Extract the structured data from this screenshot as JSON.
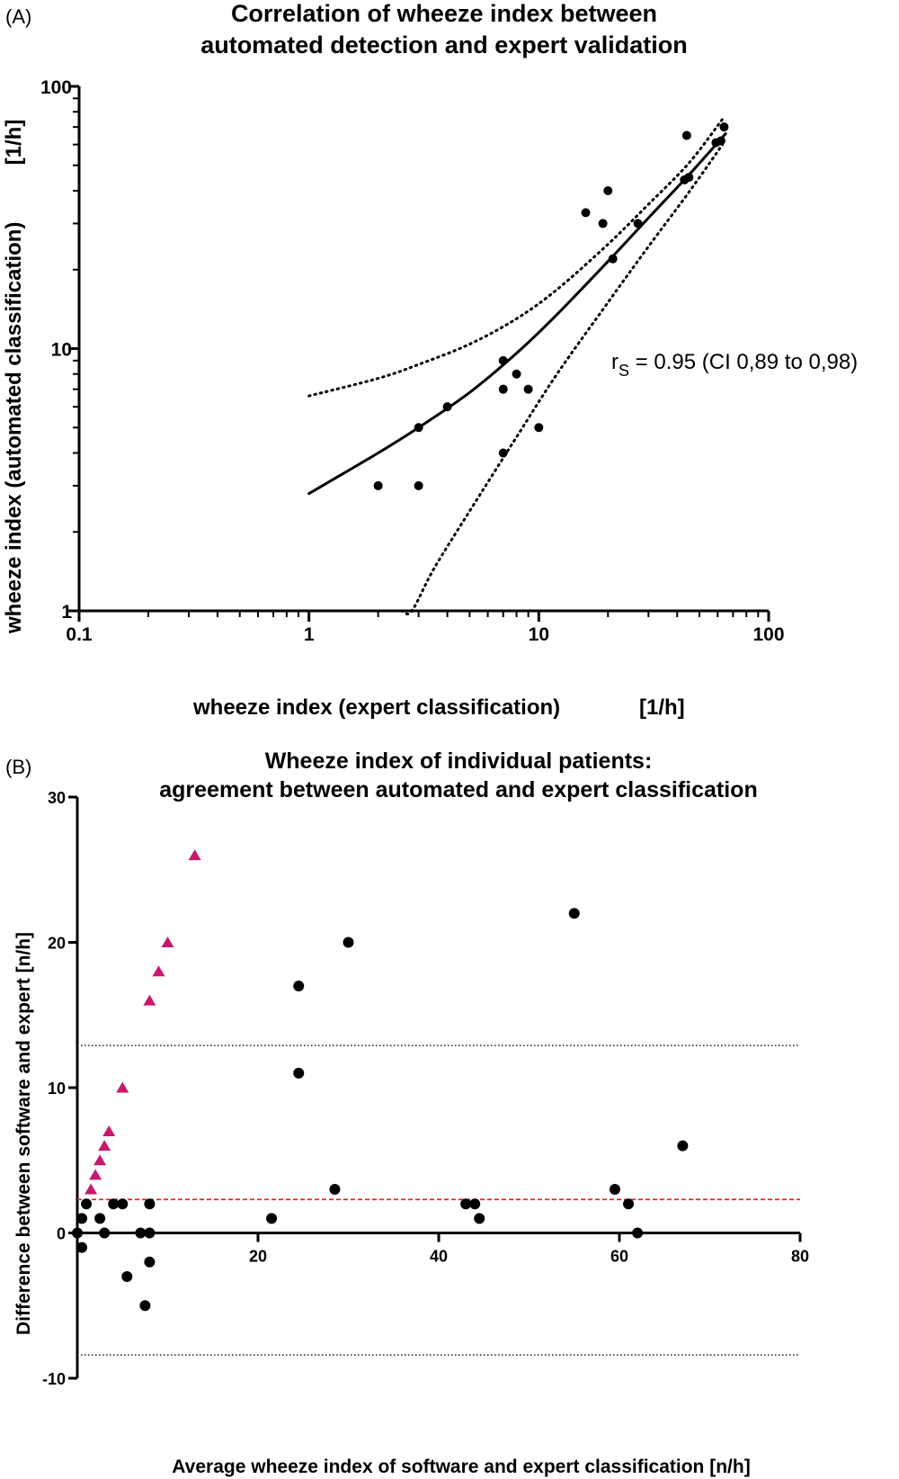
{
  "chart_data": [
    {
      "panel": "(A)",
      "type": "scatter",
      "title": "Correlation of wheeze index between automated detection and expert validation",
      "title_lines": [
        "Correlation of wheeze index between",
        "automated detection and expert validation"
      ],
      "xlabel": "wheeze index (expert classification)",
      "xunit": "[1/h]",
      "ylabel": "wheeze index (automated classification)",
      "yunit": "[1/h]",
      "xscale": "log",
      "yscale": "log",
      "xlim": [
        0.1,
        100
      ],
      "ylim": [
        1,
        100
      ],
      "x_ticks": [
        "0.1",
        "1",
        "10",
        "100"
      ],
      "y_ticks": [
        "1",
        "10",
        "100"
      ],
      "annotation": {
        "symbol": "r",
        "subscript": "S",
        "text": " = 0.95 (CI 0,89 to 0,98)"
      },
      "points": [
        {
          "x": 2,
          "y": 3
        },
        {
          "x": 3,
          "y": 3
        },
        {
          "x": 3,
          "y": 5
        },
        {
          "x": 4,
          "y": 6
        },
        {
          "x": 7,
          "y": 4
        },
        {
          "x": 7,
          "y": 7
        },
        {
          "x": 7,
          "y": 9
        },
        {
          "x": 8,
          "y": 8
        },
        {
          "x": 9,
          "y": 7
        },
        {
          "x": 10,
          "y": 5
        },
        {
          "x": 16,
          "y": 33
        },
        {
          "x": 19,
          "y": 30
        },
        {
          "x": 20,
          "y": 40
        },
        {
          "x": 21,
          "y": 22
        },
        {
          "x": 27,
          "y": 30
        },
        {
          "x": 43,
          "y": 44
        },
        {
          "x": 44,
          "y": 65
        },
        {
          "x": 45,
          "y": 45
        },
        {
          "x": 59,
          "y": 61
        },
        {
          "x": 62,
          "y": 62
        },
        {
          "x": 64,
          "y": 70
        }
      ],
      "fit_line": {
        "style": "solid",
        "x": [
          1,
          2,
          3,
          5,
          8,
          12,
          20,
          30,
          45,
          65
        ],
        "y": [
          2.8,
          4.0,
          5.0,
          6.8,
          9.6,
          13.5,
          21.5,
          31.5,
          46.0,
          66.0
        ]
      },
      "ci_upper": {
        "style": "dotted",
        "x": [
          1,
          2,
          3,
          5,
          8,
          12,
          20,
          30,
          45,
          63
        ],
        "y": [
          6.6,
          7.7,
          8.7,
          10.4,
          13.0,
          16.8,
          25.0,
          35.5,
          51.0,
          75.0
        ]
      },
      "ci_lower": {
        "style": "dotted",
        "x": [
          0.99,
          1.5,
          2.0,
          2.5,
          2.8,
          3.5,
          5,
          8,
          12,
          20,
          30,
          45,
          63
        ],
        "y": [
          1.0,
          1.0,
          1.0,
          1.0,
          1.0,
          1.45,
          2.4,
          4.6,
          8.0,
          15.0,
          24.5,
          39.5,
          60.0
        ]
      }
    },
    {
      "panel": "(B)",
      "type": "scatter",
      "title": "Wheeze index of individual patients: agreement between automated and expert classification",
      "title_lines": [
        "Wheeze index of individual patients:",
        "agreement between automated and expert classification"
      ],
      "xlabel": "Average wheeze index of software and expert classification [n/h]",
      "ylabel": "Difference between software and expert [n/h]",
      "xlim": [
        0,
        80
      ],
      "ylim": [
        -10,
        30
      ],
      "x_ticks": [
        "20",
        "40",
        "60",
        "80"
      ],
      "y_ticks": [
        "-10",
        "0",
        "10",
        "20",
        "30"
      ],
      "reference_lines": [
        {
          "y": 12.9,
          "style": "dotted",
          "color": "#333333"
        },
        {
          "y": 2.3,
          "style": "dashed",
          "color": "#e02020"
        },
        {
          "y": -8.4,
          "style": "dotted",
          "color": "#333333"
        }
      ],
      "series": [
        {
          "marker": "circle",
          "color": "#000000",
          "points": [
            {
              "x": 0,
              "y": 0
            },
            {
              "x": 0.5,
              "y": 1
            },
            {
              "x": 0.5,
              "y": -1
            },
            {
              "x": 1,
              "y": 2
            },
            {
              "x": 2.5,
              "y": 1
            },
            {
              "x": 3,
              "y": 0
            },
            {
              "x": 4,
              "y": 2
            },
            {
              "x": 5,
              "y": 2
            },
            {
              "x": 5.5,
              "y": -3
            },
            {
              "x": 7,
              "y": 0
            },
            {
              "x": 7.5,
              "y": -5
            },
            {
              "x": 8,
              "y": 2
            },
            {
              "x": 8,
              "y": 0
            },
            {
              "x": 8,
              "y": -2
            },
            {
              "x": 21.5,
              "y": 1
            },
            {
              "x": 24.5,
              "y": 17
            },
            {
              "x": 24.5,
              "y": 11
            },
            {
              "x": 28.5,
              "y": 3
            },
            {
              "x": 30,
              "y": 20
            },
            {
              "x": 43,
              "y": 2
            },
            {
              "x": 44,
              "y": 2
            },
            {
              "x": 44.5,
              "y": 1
            },
            {
              "x": 55,
              "y": 22
            },
            {
              "x": 59.5,
              "y": 3
            },
            {
              "x": 61,
              "y": 2
            },
            {
              "x": 62,
              "y": 0
            },
            {
              "x": 67,
              "y": 6
            }
          ]
        },
        {
          "marker": "triangle",
          "color": "#c8196e",
          "points": [
            {
              "x": 1.5,
              "y": 3
            },
            {
              "x": 2,
              "y": 4
            },
            {
              "x": 2.5,
              "y": 5
            },
            {
              "x": 3,
              "y": 6
            },
            {
              "x": 3.5,
              "y": 7
            },
            {
              "x": 5,
              "y": 10
            },
            {
              "x": 8,
              "y": 16
            },
            {
              "x": 9,
              "y": 18
            },
            {
              "x": 10,
              "y": 20
            },
            {
              "x": 13,
              "y": 26
            }
          ]
        }
      ]
    }
  ]
}
